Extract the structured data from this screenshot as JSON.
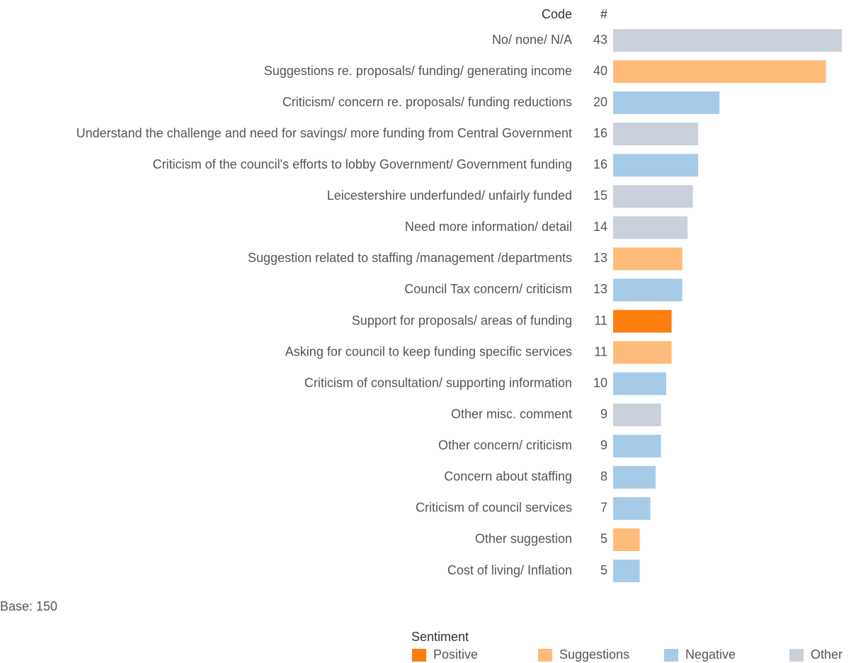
{
  "chart_data": {
    "type": "bar",
    "orientation": "horizontal",
    "category_header": "Code",
    "value_header": "#",
    "categories": [
      "No/ none/ N/A",
      "Suggestions re. proposals/ funding/ generating income",
      "Criticism/ concern re. proposals/ funding reductions",
      "Understand the challenge and need for savings/ more funding from Central Government",
      "Criticism of the council's efforts to lobby Government/ Government funding",
      "Leicestershire underfunded/ unfairly funded",
      "Need more information/ detail",
      "Suggestion related to staffing /management /departments",
      "Council Tax concern/ criticism",
      "Support for proposals/ areas of funding",
      "Asking for council to keep funding specific services",
      "Criticism of consultation/ supporting information",
      "Other misc. comment",
      "Other concern/ criticism",
      "Concern about staffing",
      "Criticism of council services",
      "Other suggestion",
      "Cost of living/ Inflation"
    ],
    "values": [
      43,
      40,
      20,
      16,
      16,
      15,
      14,
      13,
      13,
      11,
      11,
      10,
      9,
      9,
      8,
      7,
      5,
      5
    ],
    "sentiment": [
      "Other",
      "Suggestions",
      "Negative",
      "Other",
      "Negative",
      "Other",
      "Other",
      "Suggestions",
      "Negative",
      "Positive",
      "Suggestions",
      "Negative",
      "Other",
      "Negative",
      "Negative",
      "Negative",
      "Suggestions",
      "Negative"
    ],
    "legend_title": "Sentiment",
    "series": [
      {
        "name": "Positive",
        "color": "#fb7e0f"
      },
      {
        "name": "Suggestions",
        "color": "#ffbb7a"
      },
      {
        "name": "Negative",
        "color": "#a6cbe9"
      },
      {
        "name": "Other",
        "color": "#c9d0d9"
      }
    ],
    "note": "Base: 150"
  }
}
